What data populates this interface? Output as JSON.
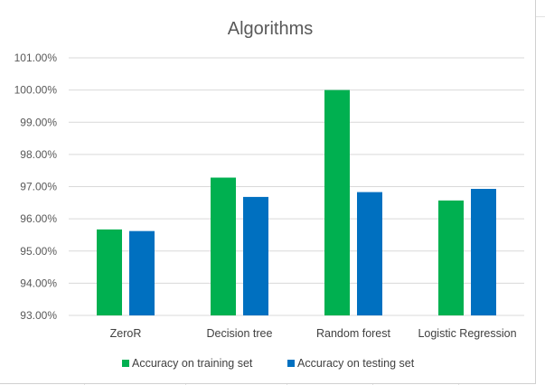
{
  "chart_data": {
    "type": "bar",
    "title": "Algorithms",
    "categories": [
      "ZeroR",
      "Decision tree",
      "Random forest",
      "Logistic Regression"
    ],
    "series": [
      {
        "name": "Accuracy on training set",
        "color": "#00b050",
        "values": [
          95.67,
          97.28,
          100.0,
          96.57
        ]
      },
      {
        "name": "Accuracy on testing set",
        "color": "#0070c0",
        "values": [
          95.62,
          96.68,
          96.83,
          96.93
        ]
      }
    ],
    "ylim": [
      93,
      101
    ],
    "yticks": [
      "93.00%",
      "94.00%",
      "95.00%",
      "96.00%",
      "97.00%",
      "98.00%",
      "99.00%",
      "100.00%",
      "101.00%"
    ],
    "grid": true,
    "legend_position": "bottom"
  }
}
